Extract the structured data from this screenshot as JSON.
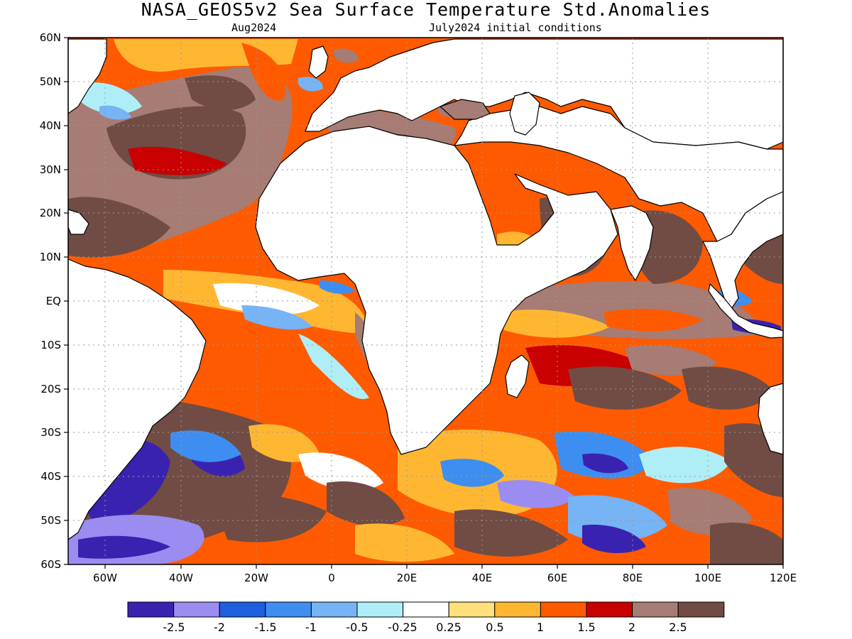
{
  "title": "NASA_GEOS5v2 Sea Surface Temperature Std.Anomalies",
  "subtitle_left": "Aug2024",
  "subtitle_right": "July2024 initial conditions",
  "lat_labels": [
    "60N",
    "50N",
    "40N",
    "30N",
    "20N",
    "10N",
    "EQ",
    "10S",
    "20S",
    "30S",
    "40S",
    "50S",
    "60S"
  ],
  "lon_labels": [
    "60W",
    "40W",
    "20W",
    "0",
    "20E",
    "40E",
    "60E",
    "80E",
    "100E",
    "120E"
  ],
  "colorbar": {
    "colors": [
      "#3a22b0",
      "#9b8cf2",
      "#1e5fe0",
      "#3d8ef0",
      "#76b4f5",
      "#b0eef7",
      "#ffffff",
      "#ffe07a",
      "#ffb732",
      "#ff5a00",
      "#c80000",
      "#a67c74",
      "#704c44"
    ],
    "labels": [
      "-2.5",
      "-2",
      "-1.5",
      "-1",
      "-0.5",
      "-0.25",
      "0.25",
      "0.5",
      "1",
      "1.5",
      "2",
      "2.5"
    ]
  },
  "colors": {
    "land": "#ffffff",
    "coast": "#000000",
    "grid": "#999999"
  }
}
